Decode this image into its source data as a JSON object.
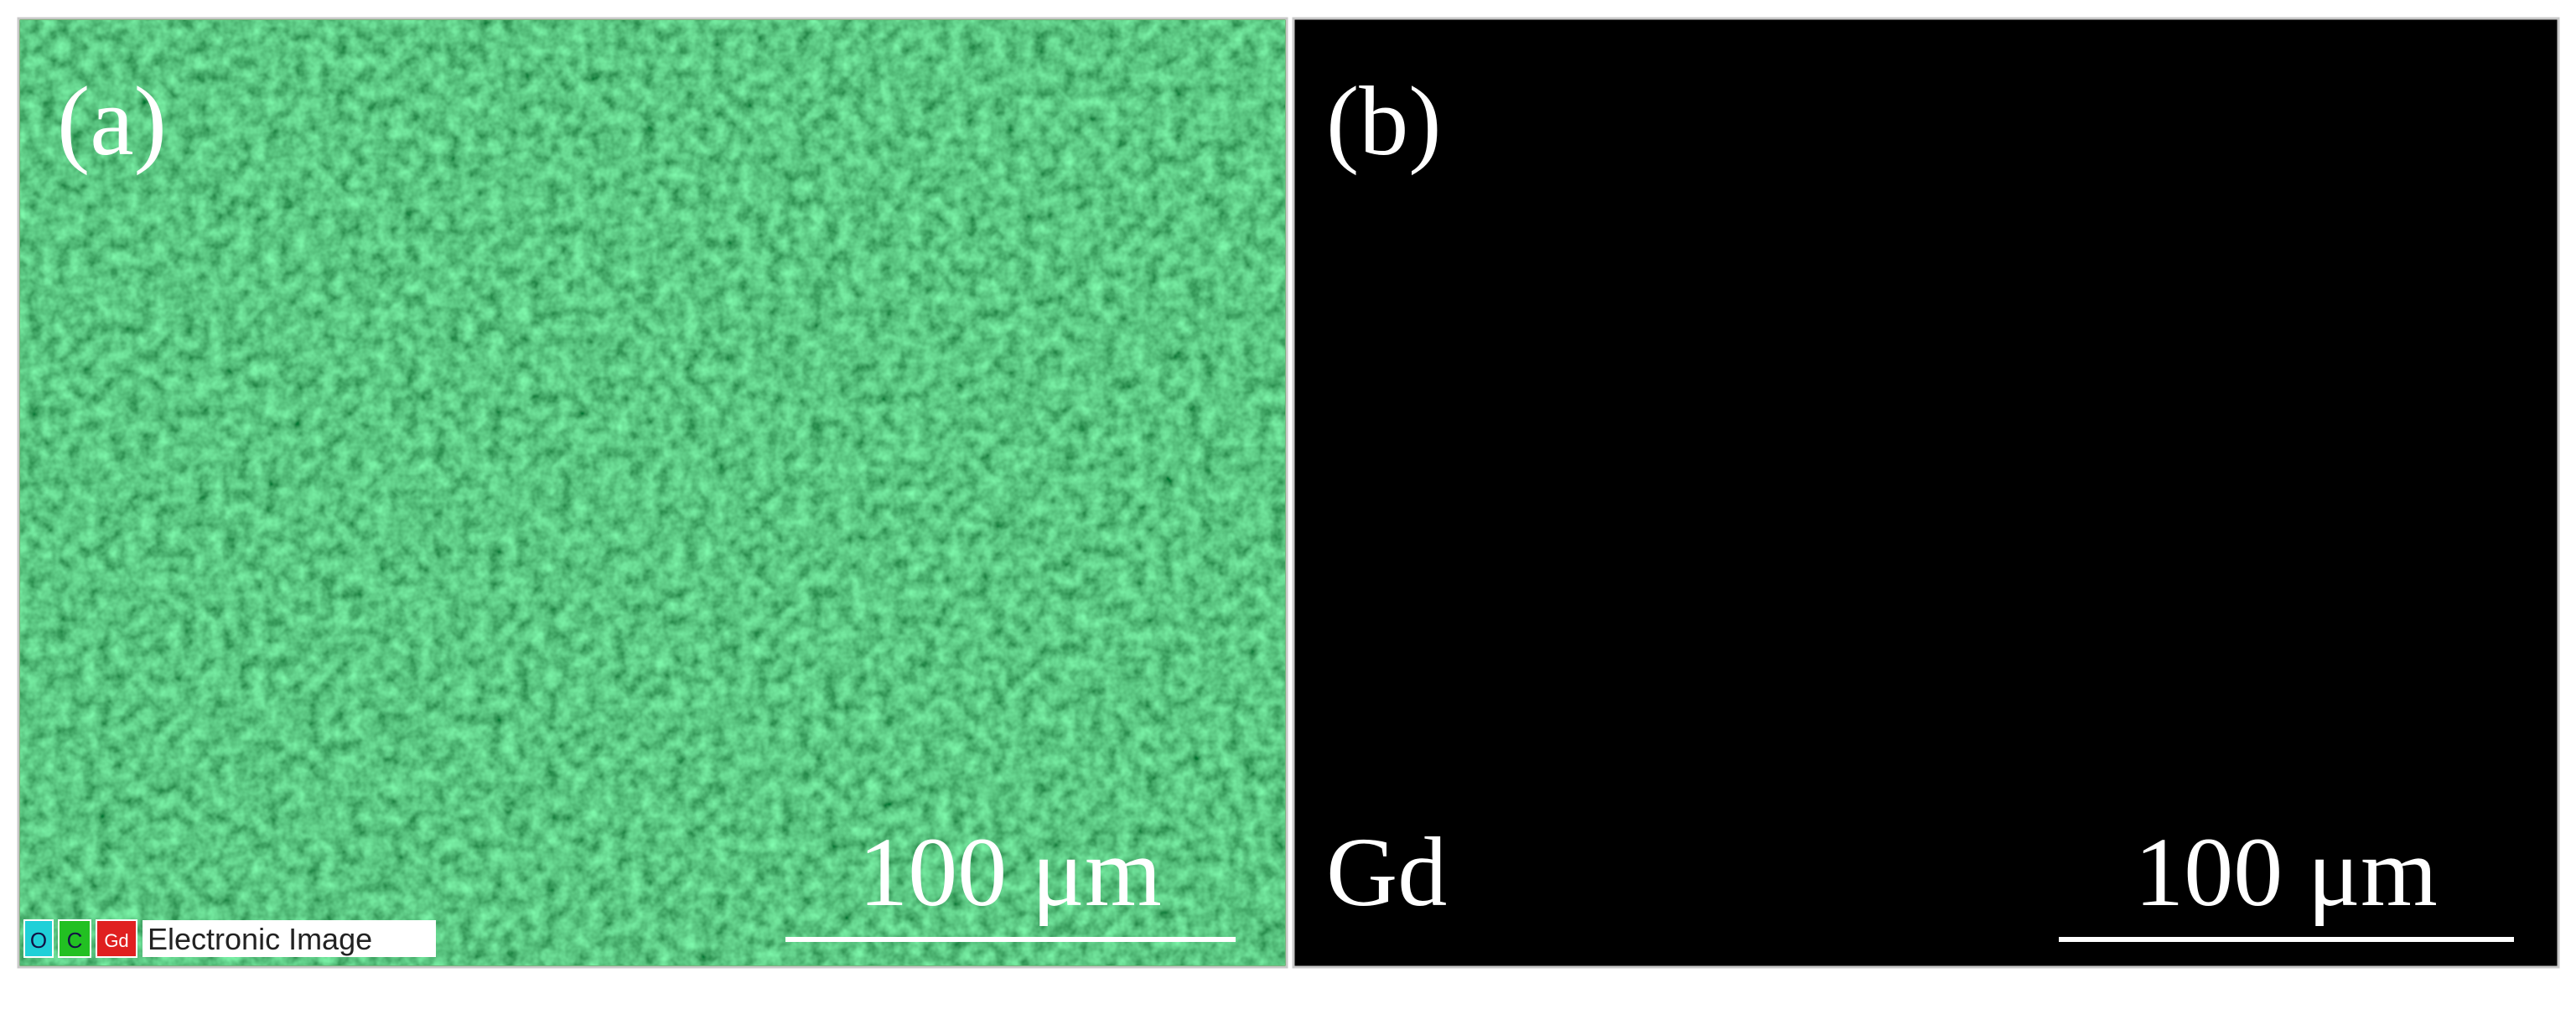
{
  "panels": [
    {
      "label": "(a)",
      "scale_bar": "100 μm",
      "legend": [
        "O",
        "C",
        "Gd"
      ],
      "legend_title": "Electronic Image"
    },
    {
      "label": "(b)",
      "element": "Gd",
      "scale_bar": "100 μm"
    }
  ]
}
